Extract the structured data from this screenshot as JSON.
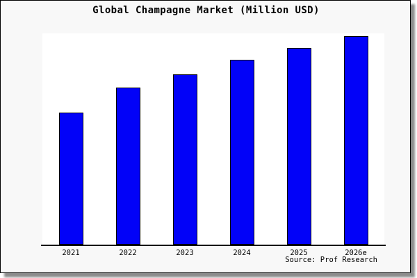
{
  "chart_data": {
    "type": "bar",
    "title": "Global Champagne Market (Million USD)",
    "categories": [
      "2021",
      "2022",
      "2023",
      "2024",
      "2025",
      "2026e"
    ],
    "values": [
      100,
      119,
      129,
      140,
      149,
      158
    ],
    "value_basis": "relative index (2021 = 100); no y-axis scale or value labels are shown in the chart",
    "xlabel": "",
    "ylabel": "",
    "y_axis_visible": false,
    "grid": false,
    "legend": false,
    "source": "Source: Prof Research"
  },
  "colors": {
    "bar_fill": "#0202f8",
    "bar_border": "#000000",
    "chart_background": "#f8f8f8",
    "plot_background": "#ffffff",
    "axis": "#000000",
    "title_text": "#000000"
  }
}
